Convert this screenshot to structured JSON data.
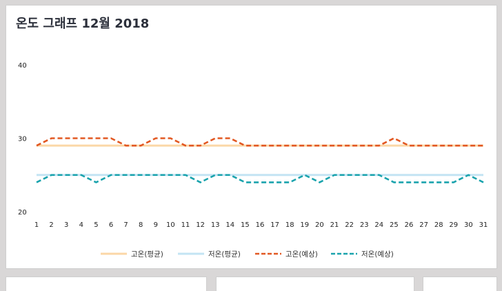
{
  "chart_data": {
    "type": "line",
    "title": "온도 그래프 12월 2018",
    "x": [
      1,
      2,
      3,
      4,
      5,
      6,
      7,
      8,
      9,
      10,
      11,
      12,
      13,
      14,
      15,
      16,
      17,
      18,
      19,
      20,
      21,
      22,
      23,
      24,
      25,
      26,
      27,
      28,
      29,
      30,
      31
    ],
    "ylim": [
      20,
      40
    ],
    "yticks": [
      20,
      30,
      40
    ],
    "grid": false,
    "legend_position": "bottom",
    "series": [
      {
        "name": "고온(평균)",
        "color": "#fbd7a6",
        "style": "solid",
        "values": [
          29,
          29,
          29,
          29,
          29,
          29,
          29,
          29,
          29,
          29,
          29,
          29,
          29,
          29,
          29,
          29,
          29,
          29,
          29,
          29,
          29,
          29,
          29,
          29,
          29,
          29,
          29,
          29,
          29,
          29,
          29
        ]
      },
      {
        "name": "저온(평균)",
        "color": "#c3e4f3",
        "style": "solid",
        "values": [
          25,
          25,
          25,
          25,
          25,
          25,
          25,
          25,
          25,
          25,
          25,
          25,
          25,
          25,
          25,
          25,
          25,
          25,
          25,
          25,
          25,
          25,
          25,
          25,
          25,
          25,
          25,
          25,
          25,
          25,
          25
        ]
      },
      {
        "name": "고온(예상)",
        "color": "#e25822",
        "style": "dashed",
        "values": [
          29,
          30,
          30,
          30,
          30,
          30,
          29,
          29,
          30,
          30,
          29,
          29,
          30,
          30,
          29,
          29,
          29,
          29,
          29,
          29,
          29,
          29,
          29,
          29,
          30,
          29,
          29,
          29,
          29,
          29,
          29
        ]
      },
      {
        "name": "저온(예상)",
        "color": "#1aa3ad",
        "style": "dashed",
        "values": [
          24,
          25,
          25,
          25,
          24,
          25,
          25,
          25,
          25,
          25,
          25,
          24,
          25,
          25,
          24,
          24,
          24,
          24,
          25,
          24,
          25,
          25,
          25,
          25,
          24,
          24,
          24,
          24,
          24,
          25,
          24
        ]
      }
    ]
  }
}
